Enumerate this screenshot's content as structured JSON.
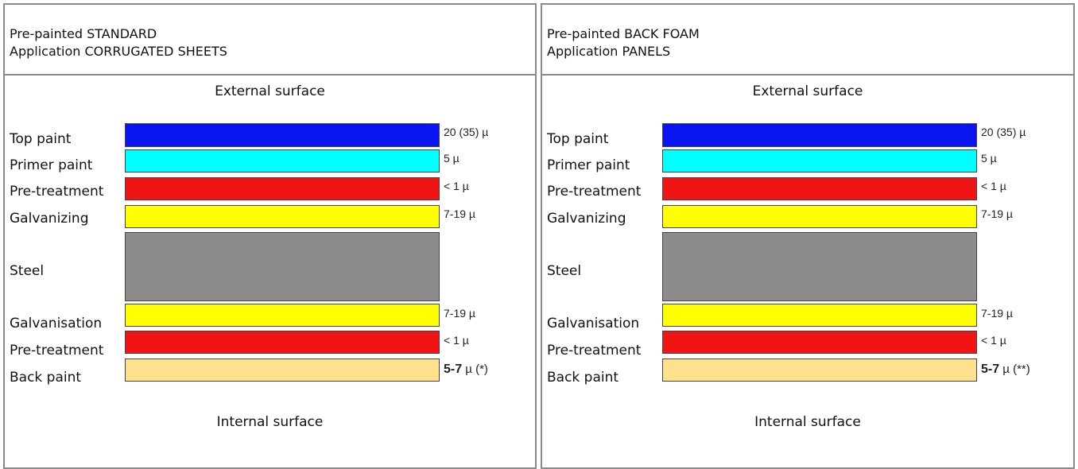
{
  "panels": [
    {
      "header_line1": "Pre-painted STANDARD",
      "header_line2": "Application CORRUGATED SHEETS",
      "external_surface": "External surface",
      "internal_surface": "Internal surface",
      "layers": [
        {
          "label": "Top paint",
          "thickness": "20 (35) µ",
          "color": "#0a14f0"
        },
        {
          "label": "Primer paint",
          "thickness": "5 µ",
          "color": "#00ffff"
        },
        {
          "label": "Pre-treatment",
          "thickness": "< 1 µ",
          "color": "#f01414"
        },
        {
          "label": "Galvanizing",
          "thickness": "7-19 µ",
          "color": "#ffff00"
        },
        {
          "label": "Steel",
          "thickness": "",
          "color": "#8c8c8c"
        },
        {
          "label": "Galvanisation",
          "thickness": "7-19 µ",
          "color": "#ffff00"
        },
        {
          "label": "Pre-treatment",
          "thickness": "< 1 µ",
          "color": "#f01414"
        },
        {
          "label": "Back paint",
          "thickness_bold": "5-7",
          "thickness_rest": " µ (*)",
          "color": "#ffe08c"
        }
      ]
    },
    {
      "header_line1": "Pre-painted BACK FOAM",
      "header_line2": "Application PANELS",
      "external_surface": "External surface",
      "internal_surface": "Internal surface",
      "layers": [
        {
          "label": "Top paint",
          "thickness": "20 (35) µ",
          "color": "#0a14f0"
        },
        {
          "label": "Primer paint",
          "thickness": "5 µ",
          "color": "#00ffff"
        },
        {
          "label": "Pre-treatment",
          "thickness": "< 1 µ",
          "color": "#f01414"
        },
        {
          "label": "Galvanizing",
          "thickness": "7-19 µ",
          "color": "#ffff00"
        },
        {
          "label": "Steel",
          "thickness": "",
          "color": "#8c8c8c"
        },
        {
          "label": "Galvanisation",
          "thickness": "7-19 µ",
          "color": "#ffff00"
        },
        {
          "label": "Pre-treatment",
          "thickness": "< 1 µ",
          "color": "#f01414"
        },
        {
          "label": "Back paint",
          "thickness_bold": "5-7",
          "thickness_rest": " µ (**)",
          "color": "#ffe08c"
        }
      ]
    }
  ]
}
